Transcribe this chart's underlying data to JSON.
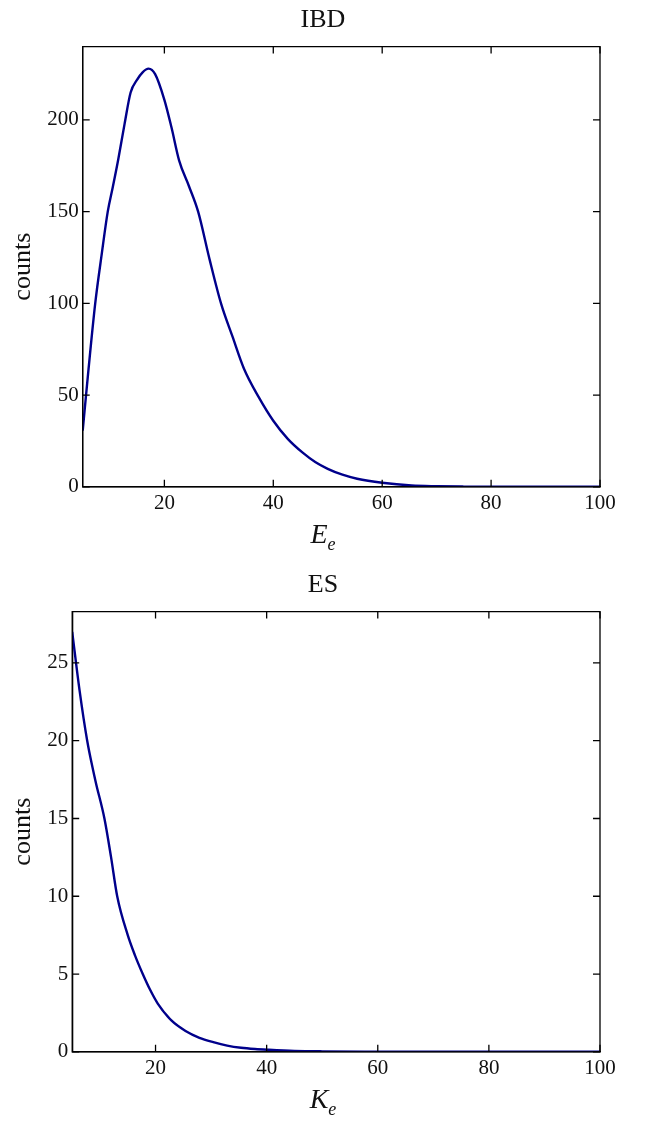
{
  "chart_data": [
    {
      "type": "line",
      "title": "IBD",
      "xlabel": "E$_{e}$",
      "ylabel": "counts",
      "xlim": [
        5,
        100
      ],
      "xticks": [
        20,
        40,
        60,
        80,
        100
      ],
      "ylim": [
        0,
        240
      ],
      "yticks": [
        0,
        50,
        100,
        150,
        200
      ],
      "grid": false,
      "series": [
        {
          "color": "#00008b",
          "x": [
            5,
            6,
            7.3,
            8.5,
            9.6,
            10.5,
            11.5,
            12.7,
            13.8,
            15,
            16,
            17.1,
            18.3,
            20,
            21.3,
            22.7,
            24.5,
            26.2,
            28.3,
            30.4,
            32.5,
            34.6,
            37.3,
            40,
            42.7,
            45.4,
            47.7,
            50,
            52.7,
            55.4,
            60,
            65.4,
            70,
            75,
            80,
            90,
            100
          ],
          "values": [
            30.6,
            62,
            100,
            127,
            150,
            163,
            178,
            198,
            215,
            222,
            226,
            228,
            225,
            211,
            196,
            178,
            164,
            150,
            124,
            100,
            82,
            64.5,
            49,
            36,
            26,
            18.6,
            13.5,
            9.8,
            6.6,
            4.4,
            2.2,
            0.7,
            0.3,
            0.12,
            0.05,
            0.01,
            0
          ]
        }
      ]
    },
    {
      "type": "line",
      "title": "ES",
      "xlabel": "K$_{e}$",
      "ylabel": "counts",
      "xlim": [
        5,
        100
      ],
      "xticks": [
        20,
        40,
        60,
        80,
        100
      ],
      "ylim": [
        0,
        28.3
      ],
      "yticks": [
        0,
        5,
        10,
        15,
        20,
        25
      ],
      "grid": false,
      "series": [
        {
          "color": "#00008b",
          "x": [
            5,
            6.3,
            7.7,
            9.2,
            10.8,
            12,
            13.1,
            15,
            16.3,
            17.7,
            19,
            20.4,
            22.9,
            25.4,
            27.9,
            30.4,
            32.9,
            35.4,
            37.9,
            40.4,
            45,
            50,
            60,
            70,
            80,
            100
          ],
          "values": [
            27,
            23.3,
            20,
            17.4,
            15,
            12.5,
            10,
            7.5,
            6.2,
            5,
            4,
            3.1,
            2,
            1.34,
            0.9,
            0.62,
            0.4,
            0.26,
            0.18,
            0.13,
            0.06,
            0.03,
            0.01,
            0,
            0,
            0
          ]
        }
      ]
    }
  ]
}
